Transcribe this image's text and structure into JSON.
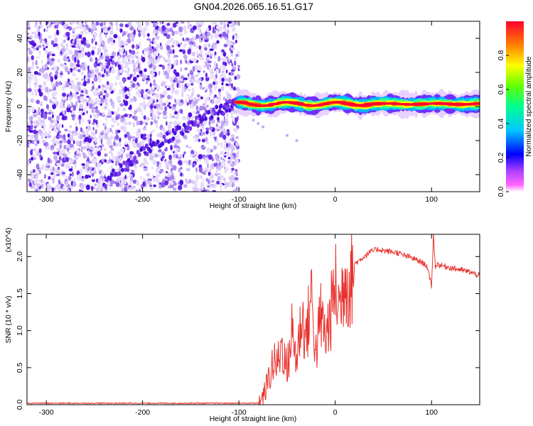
{
  "title": "GN04.2026.065.16.51.G17",
  "colors": {
    "snr_line": "#e8322e",
    "axis": "#000000",
    "purple_dense": "#5a10e6",
    "purple_light": "#cdb7f7",
    "colorscale": [
      "#ff00ff",
      "#8a2be2",
      "#0000ff",
      "#00c8ff",
      "#00ff80",
      "#7fff00",
      "#ffff00",
      "#ff8000",
      "#ff0000"
    ]
  },
  "chart_data": [
    {
      "type": "heatmap",
      "title": "GN04.2026.065.16.51.G17",
      "xlabel": "Height of straight line (km)",
      "ylabel": "Frequency (Hz)",
      "xlim": [
        -320,
        150
      ],
      "ylim": [
        -50,
        50
      ],
      "x_ticks": [
        -300,
        -200,
        -100,
        0,
        100
      ],
      "y_ticks": [
        -40,
        -20,
        0,
        20,
        40
      ],
      "colorbar": {
        "label": "Normalized spectral amplitude",
        "range": [
          0.0,
          1.0
        ],
        "ticks": [
          0.0,
          0.2,
          0.4,
          0.6,
          0.8
        ],
        "tick_labels": [
          "0.0",
          "0.2",
          "0.4",
          "0.6",
          "0.8"
        ]
      },
      "features": [
        {
          "name": "noise scatter region",
          "x_range": [
            -320,
            -100
          ],
          "y_range": [
            -50,
            50
          ]
        },
        {
          "name": "diagonal dense trace",
          "x": [
            -240,
            -200,
            -160,
            -120,
            -100
          ],
          "y": [
            -45,
            -27,
            -14,
            -2,
            2
          ]
        },
        {
          "name": "narrow tone band",
          "x_range": [
            -100,
            150
          ],
          "y_center": 1.5,
          "peak_amplitude": 1.0
        }
      ]
    },
    {
      "type": "line",
      "xlabel": "Height of straight line (km)",
      "ylabel": "SNR (10 * v/v)",
      "y_multiplier": "(x10^4)",
      "xlim": [
        -320,
        150
      ],
      "ylim": [
        0,
        2.3
      ],
      "x_ticks": [
        -300,
        -200,
        -100,
        0,
        100
      ],
      "y_ticks": [
        0.0,
        0.5,
        1.0,
        1.5,
        2.0
      ],
      "y_tick_labels": [
        "0.0",
        "0.5",
        "1.0",
        "1.5",
        "2.0"
      ],
      "series": [
        {
          "name": "SNR",
          "x": [
            -320,
            -150,
            -80,
            -75,
            -70,
            -65,
            -60,
            -55,
            -50,
            -45,
            -40,
            -35,
            -30,
            -25,
            -20,
            -15,
            -10,
            -5,
            0,
            5,
            10,
            15,
            20,
            25,
            30,
            35,
            40,
            45,
            50,
            55,
            60,
            65,
            70,
            75,
            80,
            85,
            90,
            95,
            100,
            102,
            104,
            106,
            110,
            120,
            130,
            140,
            150
          ],
          "values": [
            0.02,
            0.02,
            0.02,
            0.1,
            0.3,
            0.55,
            0.55,
            0.8,
            0.45,
            1.0,
            0.6,
            1.2,
            0.9,
            1.5,
            0.7,
            1.2,
            0.9,
            1.2,
            1.6,
            1.3,
            1.8,
            1.6,
            1.9,
            1.95,
            2.0,
            2.05,
            2.08,
            2.1,
            2.08,
            2.07,
            2.06,
            2.05,
            2.02,
            2.0,
            1.98,
            1.95,
            1.92,
            1.88,
            1.6,
            2.3,
            1.85,
            1.9,
            1.88,
            1.85,
            1.82,
            1.79,
            1.74
          ]
        }
      ]
    }
  ]
}
